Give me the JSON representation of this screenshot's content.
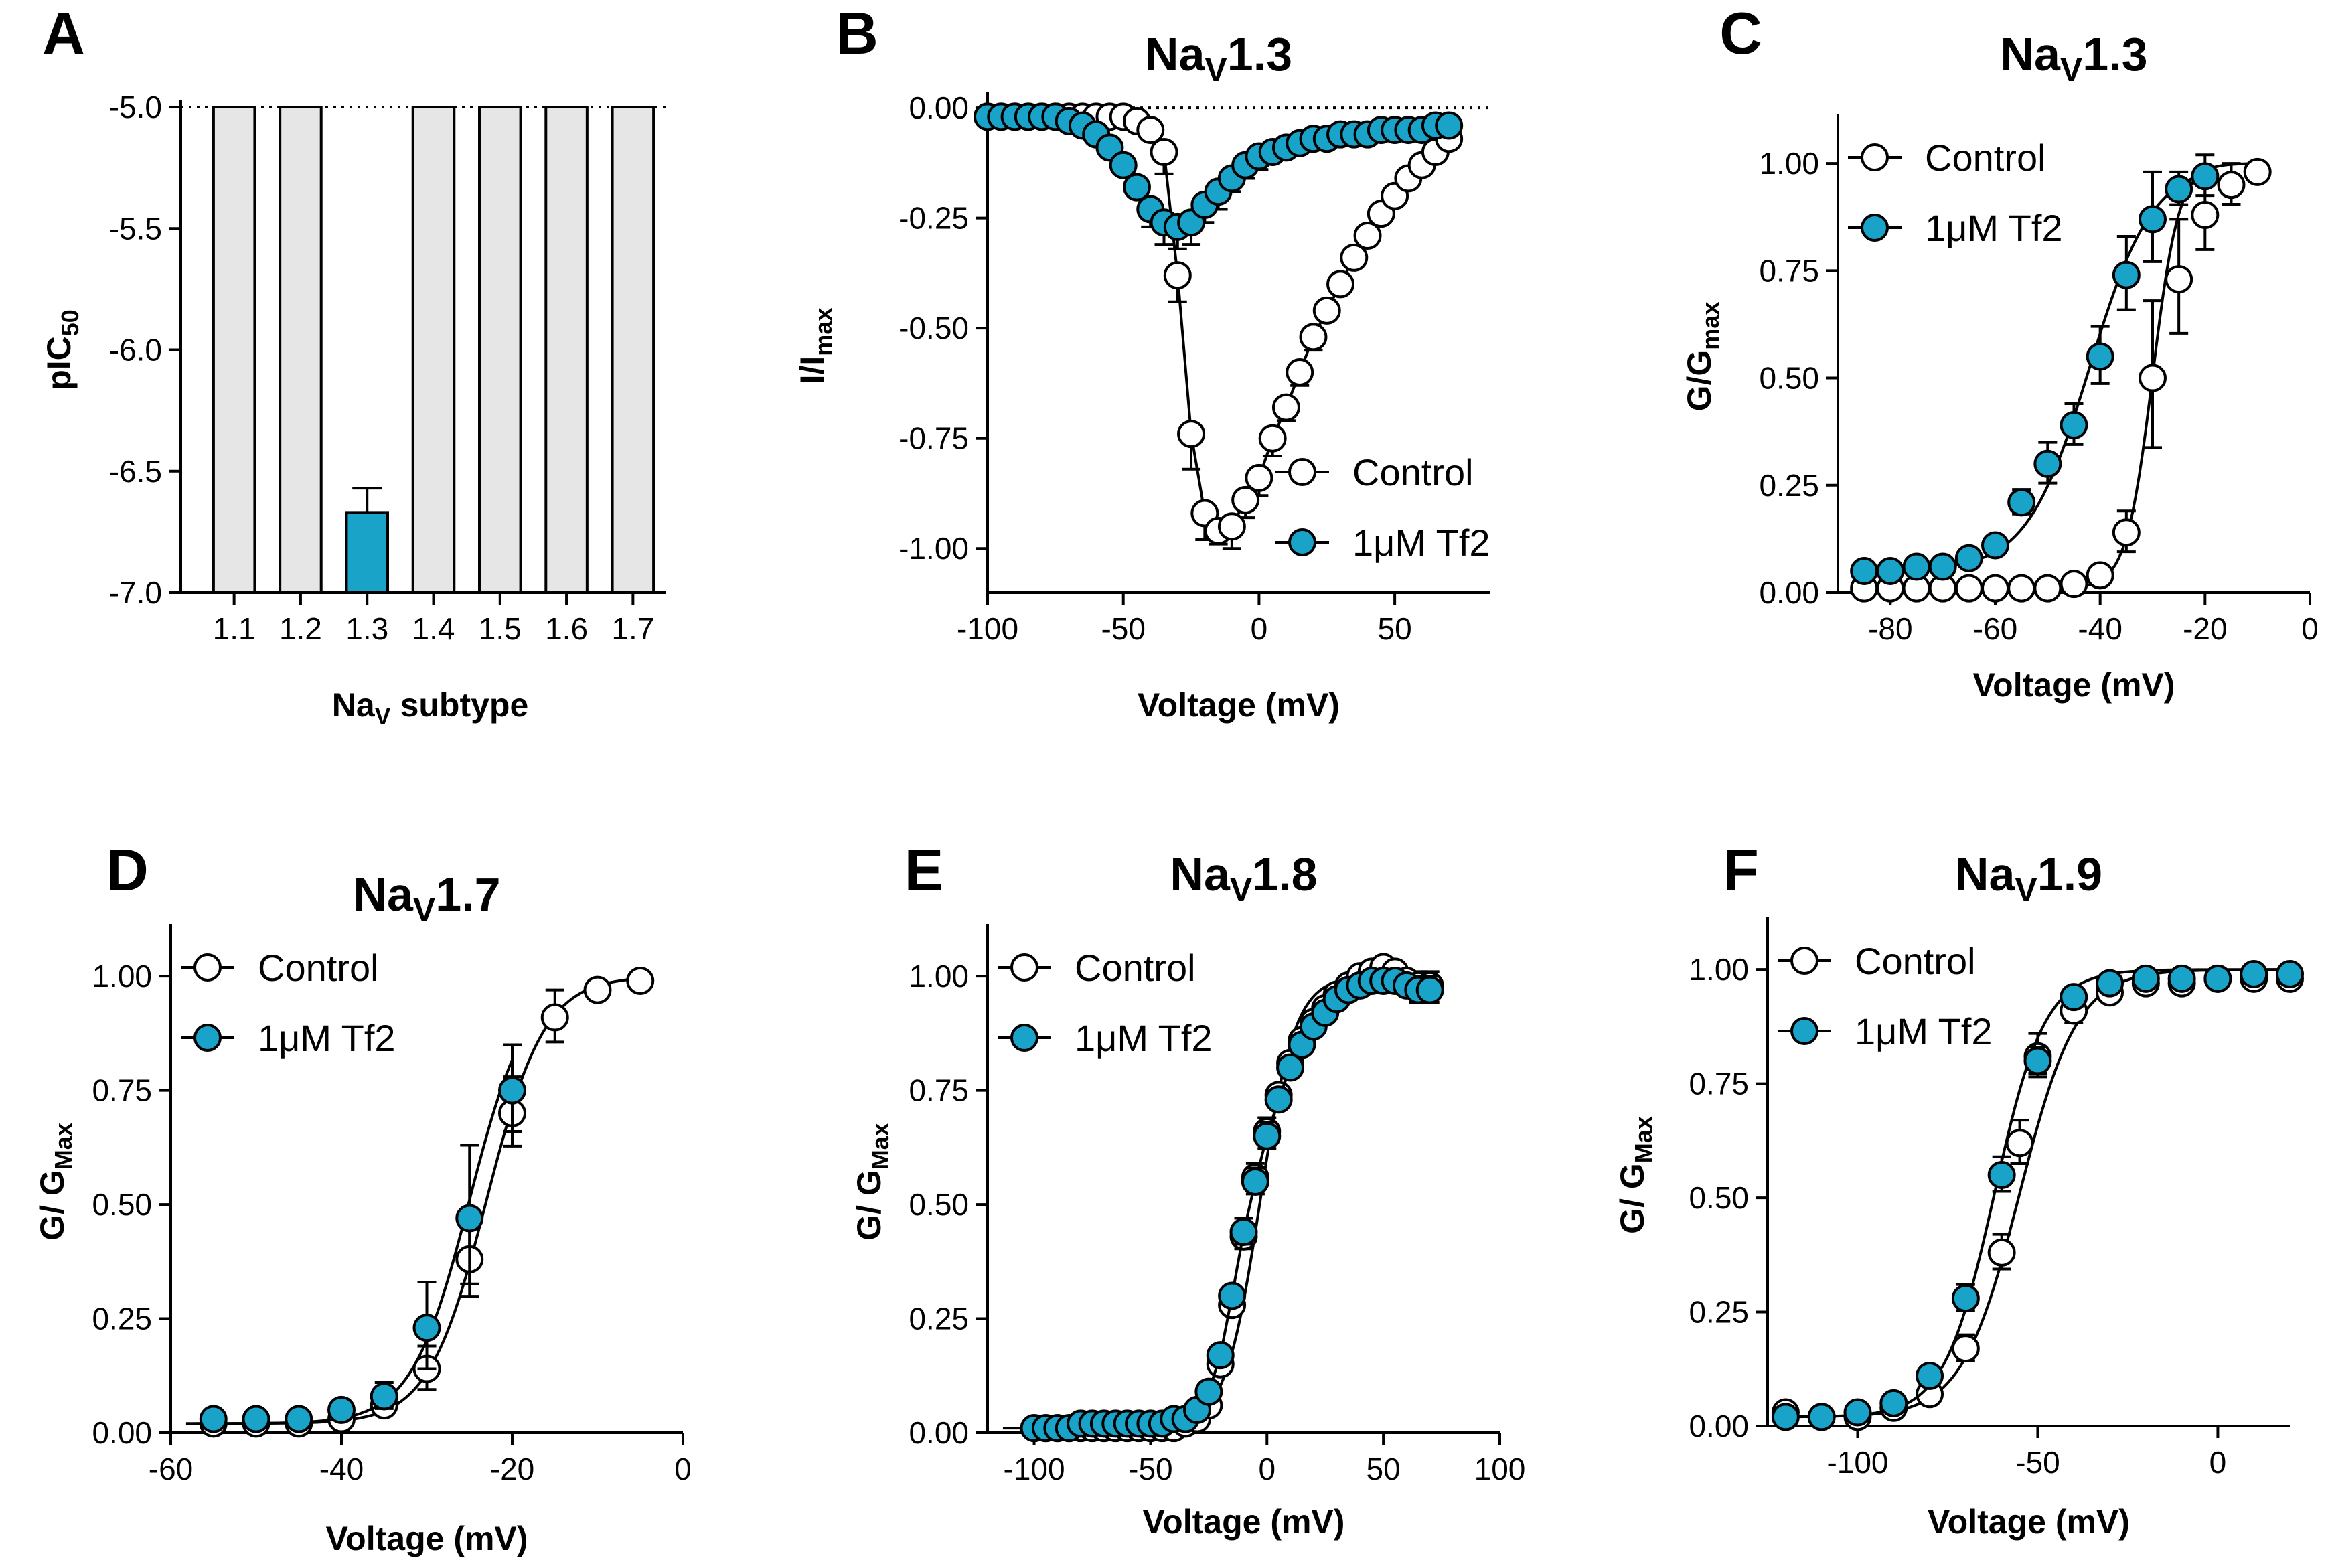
{
  "colors": {
    "tf2": "#1aa3c9",
    "control_fill": "#ffffff",
    "bar_fill": "#e6e6e6",
    "line": "#000000"
  },
  "chart_data": [
    {
      "panel": "A",
      "type": "bar",
      "title": "",
      "xlabel": "NaV subtype",
      "ylabel": "pIC50",
      "categories": [
        "1.1",
        "1.2",
        "1.3",
        "1.4",
        "1.5",
        "1.6",
        "1.7"
      ],
      "values": [
        -5.0,
        -5.0,
        -6.67,
        -5.0,
        -5.0,
        -5.0,
        -5.0
      ],
      "errors": [
        0,
        0,
        0.1,
        0,
        0,
        0,
        0
      ],
      "highlight_index": 2,
      "ylim": [
        -7.0,
        -5.0
      ],
      "yticks": [
        -5.0,
        -5.5,
        -6.0,
        -6.5,
        -7.0
      ],
      "ytick_labels": [
        "-5.0",
        "-5.5",
        "-6.0",
        "-6.5",
        "-7.0"
      ],
      "reference_line": -5.0
    },
    {
      "panel": "B",
      "type": "line",
      "title": "NaV1.3",
      "xlabel": "Voltage (mV)",
      "ylabel": "I/Imax",
      "xlim": [
        -100,
        85
      ],
      "ylim": [
        -1.1,
        0.02
      ],
      "xticks": [
        -100,
        -50,
        0,
        50
      ],
      "yticks": [
        0.0,
        -0.25,
        -0.5,
        -0.75,
        -1.0
      ],
      "ytick_labels": [
        "0.00",
        "-0.25",
        "-0.50",
        "-0.75",
        "-1.00"
      ],
      "reference_line": 0.0,
      "legend": [
        "Control",
        "1μM Tf2"
      ],
      "legend_position": "lower-right",
      "series": [
        {
          "name": "Control",
          "x": [
            -100,
            -95,
            -90,
            -85,
            -80,
            -75,
            -70,
            -65,
            -60,
            -55,
            -50,
            -45,
            -40,
            -35,
            -30,
            -25,
            -20,
            -15,
            -10,
            -5,
            0,
            5,
            10,
            15,
            20,
            25,
            30,
            35,
            40,
            45,
            50,
            55,
            60,
            65,
            70
          ],
          "y": [
            -0.02,
            -0.02,
            -0.02,
            -0.02,
            -0.02,
            -0.02,
            -0.02,
            -0.02,
            -0.02,
            -0.02,
            -0.02,
            -0.03,
            -0.05,
            -0.1,
            -0.38,
            -0.74,
            -0.92,
            -0.96,
            -0.95,
            -0.89,
            -0.84,
            -0.75,
            -0.68,
            -0.6,
            -0.52,
            -0.46,
            -0.4,
            -0.34,
            -0.29,
            -0.24,
            -0.2,
            -0.16,
            -0.13,
            -0.1,
            -0.07
          ],
          "err": [
            0,
            0,
            0,
            0,
            0,
            0,
            0,
            0,
            0,
            0,
            0,
            0,
            0,
            0.05,
            0.06,
            0.08,
            0.06,
            0.03,
            0.05,
            0.04,
            0.04,
            0.04,
            0.03,
            0.03,
            0.03,
            0,
            0,
            0,
            0,
            0,
            0,
            0,
            0,
            0,
            0
          ]
        },
        {
          "name": "1μM Tf2",
          "x": [
            -100,
            -95,
            -90,
            -85,
            -80,
            -75,
            -70,
            -65,
            -60,
            -55,
            -50,
            -45,
            -40,
            -35,
            -30,
            -25,
            -20,
            -15,
            -10,
            -5,
            0,
            5,
            10,
            15,
            20,
            25,
            30,
            35,
            40,
            45,
            50,
            55,
            60,
            65,
            70
          ],
          "y": [
            -0.02,
            -0.02,
            -0.02,
            -0.02,
            -0.02,
            -0.02,
            -0.03,
            -0.04,
            -0.06,
            -0.09,
            -0.13,
            -0.18,
            -0.23,
            -0.26,
            -0.27,
            -0.26,
            -0.22,
            -0.19,
            -0.16,
            -0.13,
            -0.11,
            -0.1,
            -0.09,
            -0.08,
            -0.07,
            -0.07,
            -0.06,
            -0.06,
            -0.06,
            -0.05,
            -0.05,
            -0.05,
            -0.05,
            -0.04,
            -0.04
          ],
          "err": [
            0,
            0,
            0,
            0,
            0,
            0,
            0,
            0,
            0,
            0,
            0,
            0,
            0.04,
            0.05,
            0.05,
            0.05,
            0.04,
            0.04,
            0.03,
            0.03,
            0.03,
            0.02,
            0.02,
            0,
            0,
            0,
            0,
            0,
            0,
            0,
            0,
            0,
            0,
            0,
            0
          ]
        }
      ]
    },
    {
      "panel": "C",
      "type": "scatter",
      "title": "NaV1.3",
      "xlabel": "Voltage (mV)",
      "ylabel": "G/Gmax",
      "xlim": [
        -90,
        0
      ],
      "ylim": [
        0,
        1.1
      ],
      "xticks": [
        -80,
        -60,
        -40,
        -20,
        0
      ],
      "yticks": [
        0.0,
        0.25,
        0.5,
        0.75,
        1.0
      ],
      "ytick_labels": [
        "0.00",
        "0.25",
        "0.50",
        "0.75",
        "1.00"
      ],
      "legend": [
        "Control",
        "1μM Tf2"
      ],
      "legend_position": "top-left",
      "series": [
        {
          "name": "Control",
          "x": [
            -85,
            -80,
            -75,
            -70,
            -65,
            -60,
            -55,
            -50,
            -45,
            -40,
            -35,
            -30,
            -25,
            -20,
            -15,
            -10
          ],
          "y": [
            0.01,
            0.01,
            0.01,
            0.01,
            0.01,
            0.01,
            0.01,
            0.01,
            0.02,
            0.04,
            0.14,
            0.5,
            0.73,
            0.88,
            0.95,
            0.98
          ],
          "err": [
            0,
            0,
            0,
            0,
            0,
            0,
            0,
            0,
            0,
            0.02,
            0.05,
            0.18,
            0.14,
            0.09,
            0.05,
            0.02
          ],
          "fit": {
            "v_half": -30,
            "k": 2.5,
            "base": 0.01
          }
        },
        {
          "name": "1μM Tf2",
          "x": [
            -85,
            -80,
            -75,
            -70,
            -65,
            -60,
            -55,
            -50,
            -45,
            -40,
            -35,
            -30,
            -25,
            -20
          ],
          "y": [
            0.05,
            0.05,
            0.06,
            0.06,
            0.08,
            0.11,
            0.21,
            0.3,
            0.39,
            0.55,
            0.74,
            0.87,
            0.94,
            0.97
          ],
          "err": [
            0,
            0,
            0,
            0,
            0,
            0.02,
            0.03,
            0.05,
            0.05,
            0.07,
            0.09,
            0.11,
            0.04,
            0.05
          ],
          "fit": {
            "v_half": -42,
            "k": 6,
            "base": 0.05
          }
        }
      ]
    },
    {
      "panel": "D",
      "type": "scatter",
      "title": "NaV1.7",
      "xlabel": "Voltage (mV)",
      "ylabel": "G/ GMax",
      "xlim": [
        -60,
        0
      ],
      "ylim": [
        0,
        1.1
      ],
      "xticks": [
        -60,
        -40,
        -20,
        0
      ],
      "yticks": [
        0.0,
        0.25,
        0.5,
        0.75,
        1.0
      ],
      "ytick_labels": [
        "0.00",
        "0.25",
        "0.50",
        "0.75",
        "1.00"
      ],
      "reference_line": 0.0,
      "legend": [
        "Control",
        "1μM Tf2"
      ],
      "legend_position": "top-left",
      "series": [
        {
          "name": "Control",
          "x": [
            -55,
            -50,
            -45,
            -40,
            -35,
            -30,
            -25,
            -20,
            -15,
            -10,
            -5
          ],
          "y": [
            0.02,
            0.02,
            0.02,
            0.03,
            0.06,
            0.14,
            0.38,
            0.7,
            0.91,
            0.97,
            0.99
          ],
          "err": [
            0,
            0,
            0,
            0,
            0.02,
            0.05,
            0.09,
            0.08,
            0.06,
            0.02,
            0
          ],
          "fit": {
            "v_half": -23,
            "k": 3.4,
            "base": 0.02
          }
        },
        {
          "name": "1μM Tf2",
          "x": [
            -55,
            -50,
            -45,
            -40,
            -35,
            -30,
            -25,
            -20
          ],
          "y": [
            0.03,
            0.03,
            0.03,
            0.05,
            0.08,
            0.23,
            0.47,
            0.75
          ],
          "err": [
            0,
            0,
            0,
            0.02,
            0.03,
            0.1,
            0.16,
            0.1
          ],
          "fit": {
            "v_half": -25,
            "k": 3.4,
            "base": 0.02
          }
        }
      ]
    },
    {
      "panel": "E",
      "type": "scatter",
      "title": "NaV1.8",
      "xlabel": "Voltage (mV)",
      "ylabel": "G/ GMax",
      "xlim": [
        -120,
        100
      ],
      "ylim": [
        0,
        1.1
      ],
      "xticks": [
        -100,
        -50,
        0,
        50,
        100
      ],
      "yticks": [
        0.0,
        0.25,
        0.5,
        0.75,
        1.0
      ],
      "ytick_labels": [
        "0.00",
        "0.25",
        "0.50",
        "0.75",
        "1.00"
      ],
      "legend": [
        "Control",
        "1μM Tf2"
      ],
      "legend_position": "top-left",
      "series": [
        {
          "name": "Control",
          "x": [
            -100,
            -95,
            -90,
            -85,
            -80,
            -75,
            -70,
            -65,
            -60,
            -55,
            -50,
            -45,
            -40,
            -35,
            -30,
            -25,
            -20,
            -15,
            -10,
            -5,
            0,
            5,
            10,
            15,
            20,
            25,
            30,
            35,
            40,
            45,
            50,
            55,
            60,
            65,
            70
          ],
          "y": [
            0.01,
            0.01,
            0.01,
            0.01,
            0.01,
            0.01,
            0.01,
            0.01,
            0.01,
            0.01,
            0.01,
            0.01,
            0.01,
            0.02,
            0.03,
            0.06,
            0.15,
            0.28,
            0.43,
            0.56,
            0.66,
            0.74,
            0.81,
            0.86,
            0.9,
            0.93,
            0.96,
            0.98,
            1.0,
            1.01,
            1.02,
            1.01,
            0.99,
            0.98,
            0.98
          ],
          "err": [
            0,
            0,
            0,
            0,
            0,
            0,
            0,
            0,
            0,
            0,
            0,
            0,
            0,
            0,
            0,
            0,
            0.02,
            0.02,
            0.03,
            0.03,
            0.03,
            0.02,
            0.02,
            0.02,
            0,
            0,
            0,
            0,
            0,
            0,
            0,
            0.02,
            0.02,
            0.03,
            0.03
          ],
          "fit": {
            "v_half": -3,
            "k": 7.5,
            "base": 0.01
          }
        },
        {
          "name": "1μM Tf2",
          "x": [
            -100,
            -95,
            -90,
            -85,
            -80,
            -75,
            -70,
            -65,
            -60,
            -55,
            -50,
            -45,
            -40,
            -35,
            -30,
            -25,
            -20,
            -15,
            -10,
            -5,
            0,
            5,
            10,
            15,
            20,
            25,
            30,
            35,
            40,
            45,
            50,
            55,
            60,
            65,
            70
          ],
          "y": [
            0.01,
            0.01,
            0.01,
            0.01,
            0.02,
            0.02,
            0.02,
            0.02,
            0.02,
            0.02,
            0.02,
            0.02,
            0.03,
            0.03,
            0.05,
            0.09,
            0.17,
            0.3,
            0.44,
            0.55,
            0.65,
            0.73,
            0.8,
            0.85,
            0.89,
            0.92,
            0.95,
            0.97,
            0.98,
            0.99,
            0.99,
            0.99,
            0.98,
            0.97,
            0.97
          ],
          "err": [
            0,
            0,
            0,
            0,
            0,
            0,
            0,
            0,
            0,
            0,
            0,
            0,
            0,
            0,
            0,
            0,
            0.02,
            0.02,
            0.03,
            0.03,
            0.03,
            0.02,
            0.02,
            0.02,
            0,
            0,
            0,
            0,
            0,
            0,
            0,
            0.02,
            0.02,
            0.03,
            0.03
          ],
          "fit": null
        }
      ]
    },
    {
      "panel": "F",
      "type": "scatter",
      "title": "NaV1.9",
      "xlabel": "Voltage (mV)",
      "ylabel": "G/ GMax",
      "xlim": [
        -125,
        20
      ],
      "ylim": [
        0,
        1.1
      ],
      "xticks": [
        -100,
        -50,
        0
      ],
      "yticks": [
        0.0,
        0.25,
        0.5,
        0.75,
        1.0
      ],
      "ytick_labels": [
        "0.00",
        "0.25",
        "0.50",
        "0.75",
        "1.00"
      ],
      "legend": [
        "Control",
        "1μM Tf2"
      ],
      "legend_position": "top-left",
      "series": [
        {
          "name": "Control",
          "x": [
            -120,
            -110,
            -100,
            -90,
            -80,
            -70,
            -60,
            -55,
            -50,
            -40,
            -30,
            -20,
            -10,
            0,
            10,
            20
          ],
          "y": [
            0.03,
            0.02,
            0.02,
            0.04,
            0.07,
            0.17,
            0.38,
            0.62,
            0.81,
            0.91,
            0.95,
            0.97,
            0.97,
            0.98,
            0.98,
            0.98
          ],
          "err": [
            0,
            0,
            0,
            0,
            0.02,
            0.03,
            0.04,
            0.05,
            0.05,
            0.03,
            0.02,
            0,
            0,
            0,
            0,
            0
          ],
          "fit": {
            "v_half": -55,
            "k": 8,
            "base": 0.02
          }
        },
        {
          "name": "1μM Tf2",
          "x": [
            -120,
            -110,
            -100,
            -90,
            -80,
            -70,
            -60,
            -50,
            -40,
            -30,
            -20,
            -10,
            0,
            10,
            20
          ],
          "y": [
            0.02,
            0.02,
            0.03,
            0.05,
            0.11,
            0.28,
            0.55,
            0.8,
            0.94,
            0.97,
            0.98,
            0.98,
            0.98,
            0.99,
            0.99
          ],
          "err": [
            0,
            0,
            0,
            0,
            0.02,
            0.03,
            0.04,
            0.03,
            0.02,
            0,
            0,
            0,
            0,
            0,
            0
          ],
          "fit": {
            "v_half": -62,
            "k": 7,
            "base": 0.02
          }
        }
      ]
    }
  ]
}
